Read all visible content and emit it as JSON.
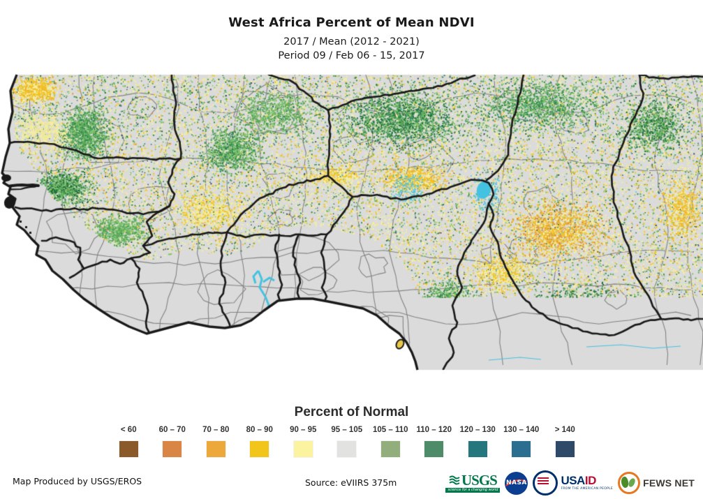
{
  "header": {
    "title": "West Africa Percent of Mean NDVI",
    "subtitle1": "2017 / Mean (2012 - 2021)",
    "subtitle2": "Period 09 / Feb 06 - 15, 2017"
  },
  "legend": {
    "title": "Percent of Normal",
    "classes": [
      {
        "label": "< 60",
        "color": "#8A5A2B"
      },
      {
        "label": "60 – 70",
        "color": "#D98546"
      },
      {
        "label": "70 – 80",
        "color": "#EDA83C"
      },
      {
        "label": "80 – 90",
        "color": "#F2C51B"
      },
      {
        "label": "90 – 95",
        "color": "#FBF3A0"
      },
      {
        "label": "95 – 105",
        "color": "#E2E2E0"
      },
      {
        "label": "105 – 110",
        "color": "#92AE7C"
      },
      {
        "label": "110 – 120",
        "color": "#4E8C69"
      },
      {
        "label": "120 – 130",
        "color": "#26767E"
      },
      {
        "label": "130 – 140",
        "color": "#2B6E90"
      },
      {
        "label": "> 140",
        "color": "#2F4A68"
      }
    ]
  },
  "map": {
    "land_color": "#DBDBDB",
    "ocean_color": "#FFFFFF",
    "country_border_color": "#1A1A1A",
    "admin_border_color": "#828282",
    "water_color": "#45C2E2",
    "speckle_pale": "#F6EE9B",
    "speckle_gold": "#F2C51F",
    "speckle_green": "#63B45C",
    "speckle_dark_green": "#2F8A4C",
    "speckle_orange": "#E0912F",
    "speckle_brown": "#8A5A2B",
    "speckle_navy": "#2C4A6E"
  },
  "footer": {
    "produced_by": "Map Produced by USGS/EROS",
    "source": "Source: eVIIRS 375m",
    "logos": {
      "usgs": {
        "name": "USGS",
        "tagline": "science for a changing world"
      },
      "nasa": {
        "name": "NASA"
      },
      "usaid": {
        "name_blue": "USA",
        "name_red": "ID",
        "tagline": "FROM THE AMERICAN PEOPLE"
      },
      "fewsnet": {
        "name": "FEWS NET"
      }
    }
  }
}
